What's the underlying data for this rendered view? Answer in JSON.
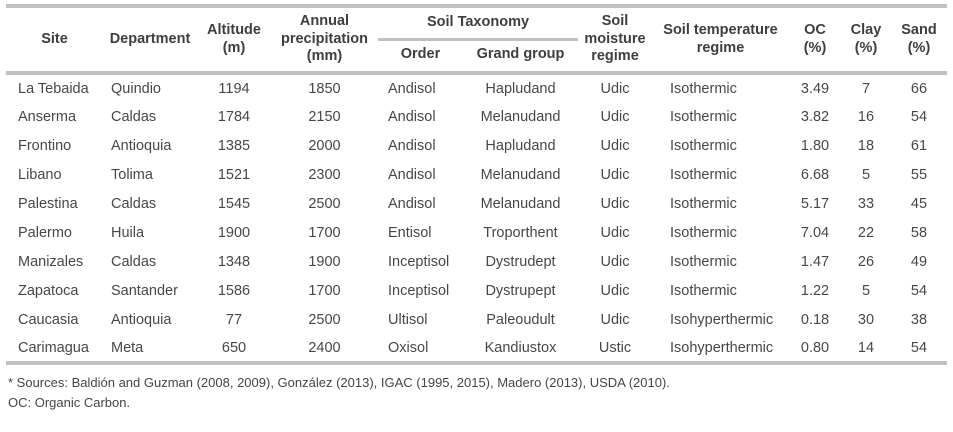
{
  "table": {
    "header": {
      "site": "Site",
      "department": "Department",
      "altitude": "Altitude\n(m)",
      "precipitation": "Annual\nprecipitation\n(mm)",
      "soil_taxonomy": "Soil Taxonomy",
      "order": "Order",
      "grand_group": "Grand group",
      "moisture": "Soil\nmoisture\nregime",
      "temperature": "Soil temperature\nregime",
      "oc": "OC\n(%)",
      "clay": "Clay\n(%)",
      "sand": "Sand\n(%)"
    },
    "rows": [
      {
        "site": "La Tebaida",
        "department": "Quindio",
        "altitude": "1194",
        "precipitation": "1850",
        "order": "Andisol",
        "grand_group": "Hapludand",
        "moisture": "Udic",
        "temperature": "Isothermic",
        "oc": "3.49",
        "clay": "7",
        "sand": "66"
      },
      {
        "site": "Anserma",
        "department": "Caldas",
        "altitude": "1784",
        "precipitation": "2150",
        "order": "Andisol",
        "grand_group": "Melanudand",
        "moisture": "Udic",
        "temperature": "Isothermic",
        "oc": "3.82",
        "clay": "16",
        "sand": "54"
      },
      {
        "site": "Frontino",
        "department": "Antioquia",
        "altitude": "1385",
        "precipitation": "2000",
        "order": "Andisol",
        "grand_group": "Hapludand",
        "moisture": "Udic",
        "temperature": "Isothermic",
        "oc": "1.80",
        "clay": "18",
        "sand": "61"
      },
      {
        "site": "Libano",
        "department": "Tolima",
        "altitude": "1521",
        "precipitation": "2300",
        "order": "Andisol",
        "grand_group": "Melanudand",
        "moisture": "Udic",
        "temperature": "Isothermic",
        "oc": "6.68",
        "clay": "5",
        "sand": "55"
      },
      {
        "site": "Palestina",
        "department": "Caldas",
        "altitude": "1545",
        "precipitation": "2500",
        "order": "Andisol",
        "grand_group": "Melanudand",
        "moisture": "Udic",
        "temperature": "Isothermic",
        "oc": "5.17",
        "clay": "33",
        "sand": "45"
      },
      {
        "site": "Palermo",
        "department": "Huila",
        "altitude": "1900",
        "precipitation": "1700",
        "order": "Entisol",
        "grand_group": "Troporthent",
        "moisture": "Udic",
        "temperature": "Isothermic",
        "oc": "7.04",
        "clay": "22",
        "sand": "58"
      },
      {
        "site": "Manizales",
        "department": "Caldas",
        "altitude": "1348",
        "precipitation": "1900",
        "order": "Inceptisol",
        "grand_group": "Dystrudept",
        "moisture": "Udic",
        "temperature": "Isothermic",
        "oc": "1.47",
        "clay": "26",
        "sand": "49"
      },
      {
        "site": "Zapatoca",
        "department": "Santander",
        "altitude": "1586",
        "precipitation": "1700",
        "order": "Inceptisol",
        "grand_group": "Dystrupept",
        "moisture": "Udic",
        "temperature": "Isothermic",
        "oc": "1.22",
        "clay": "5",
        "sand": "54"
      },
      {
        "site": "Caucasia",
        "department": "Antioquia",
        "altitude": "77",
        "precipitation": "2500",
        "order": "Ultisol",
        "grand_group": "Paleoudult",
        "moisture": "Udic",
        "temperature": "Isohyperthermic",
        "oc": "0.18",
        "clay": "30",
        "sand": "38"
      },
      {
        "site": "Carimagua",
        "department": "Meta",
        "altitude": "650",
        "precipitation": "2400",
        "order": "Oxisol",
        "grand_group": "Kandiustox",
        "moisture": "Ustic",
        "temperature": "Isohyperthermic",
        "oc": "0.80",
        "clay": "14",
        "sand": "54"
      }
    ]
  },
  "footnotes": {
    "sources": "* Sources: Baldión and Guzman (2008, 2009), González (2013), IGAC (1995, 2015), Madero (2013), USDA (2010).",
    "oc_note": "OC: Organic Carbon."
  },
  "colors": {
    "text": "#424242",
    "rule": "#c1c1c1"
  }
}
